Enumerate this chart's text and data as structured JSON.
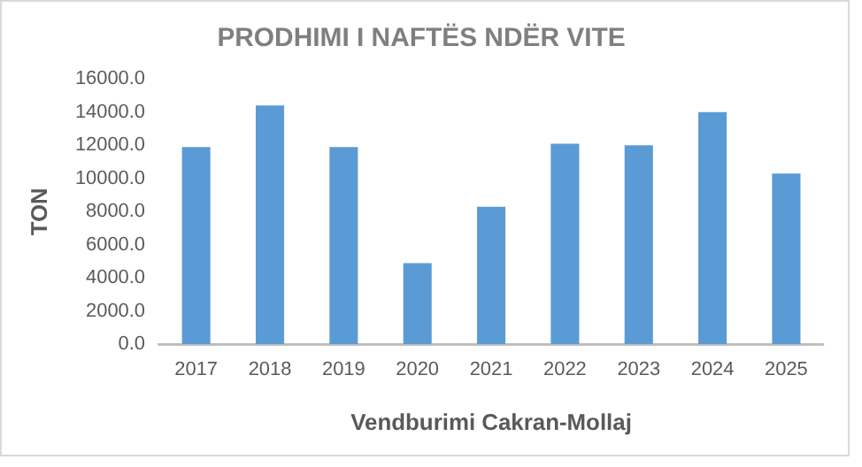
{
  "chart_data": {
    "type": "bar",
    "title": "PRODHIMI I NAFTËS NDËR VITE",
    "xlabel": "Vendburimi Cakran-Mollaj",
    "ylabel": "TON",
    "categories": [
      "2017",
      "2018",
      "2019",
      "2020",
      "2021",
      "2022",
      "2023",
      "2024",
      "2025"
    ],
    "values": [
      11900,
      14400,
      11900,
      4900,
      8300,
      12100,
      12000,
      14000,
      10300
    ],
    "color": "#5b9bd5",
    "ylim": [
      0,
      16000
    ],
    "yticks": [
      {
        "value": 0,
        "label": "0.0"
      },
      {
        "value": 2000,
        "label": "2000.0"
      },
      {
        "value": 4000,
        "label": "4000.0"
      },
      {
        "value": 6000,
        "label": "6000.0"
      },
      {
        "value": 8000,
        "label": "8000.0"
      },
      {
        "value": 10000,
        "label": "10000.0"
      },
      {
        "value": 12000,
        "label": "12000.0"
      },
      {
        "value": 14000,
        "label": "14000.0"
      },
      {
        "value": 16000,
        "label": "16000.0"
      }
    ],
    "grid": false,
    "legend": false
  }
}
